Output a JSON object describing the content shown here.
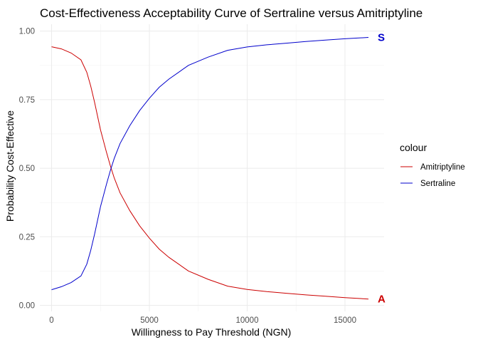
{
  "chart_data": {
    "type": "line",
    "title": "Cost-Effectiveness Acceptability Curve of Sertraline versus Amitriptyline",
    "xlabel": "Willingness to Pay Threshold (NGN)",
    "ylabel": "Probability Cost-Effective",
    "xlim": [
      -600,
      17000
    ],
    "ylim": [
      -0.022,
      1.025
    ],
    "x_ticks": [
      0,
      5000,
      10000,
      15000
    ],
    "x_tick_labels": [
      "0",
      "5000",
      "10000",
      "15000"
    ],
    "y_ticks": [
      0,
      0.25,
      0.5,
      0.75,
      1.0
    ],
    "y_tick_labels": [
      "0.00",
      "0.25",
      "0.50",
      "0.75",
      "1.00"
    ],
    "grid": true,
    "legend": {
      "title": "colour",
      "position": "right",
      "entries": [
        {
          "label": "Amitriptyline",
          "color": "#cc0000"
        },
        {
          "label": "Sertraline",
          "color": "#0000cc"
        }
      ]
    },
    "series": [
      {
        "name": "Amitriptyline",
        "color": "#cc0000",
        "end_label": "A",
        "x": [
          0,
          500,
          1000,
          1500,
          1800,
          2000,
          2200,
          2500,
          2800,
          3000,
          3200,
          3500,
          4000,
          4500,
          5000,
          5500,
          6000,
          7000,
          8000,
          9000,
          10000,
          11000,
          12000,
          13000,
          14000,
          15000,
          16200
        ],
        "y": [
          0.943,
          0.935,
          0.92,
          0.895,
          0.85,
          0.8,
          0.74,
          0.64,
          0.56,
          0.51,
          0.465,
          0.41,
          0.345,
          0.29,
          0.245,
          0.205,
          0.175,
          0.125,
          0.095,
          0.07,
          0.058,
          0.05,
          0.044,
          0.038,
          0.033,
          0.028,
          0.023
        ]
      },
      {
        "name": "Sertraline",
        "color": "#0000cc",
        "end_label": "S",
        "x": [
          0,
          500,
          1000,
          1500,
          1800,
          2000,
          2200,
          2500,
          2800,
          3000,
          3200,
          3500,
          4000,
          4500,
          5000,
          5500,
          6000,
          7000,
          8000,
          9000,
          10000,
          11000,
          12000,
          13000,
          14000,
          15000,
          16200
        ],
        "y": [
          0.057,
          0.068,
          0.083,
          0.107,
          0.15,
          0.2,
          0.26,
          0.36,
          0.44,
          0.49,
          0.535,
          0.59,
          0.655,
          0.71,
          0.755,
          0.795,
          0.825,
          0.875,
          0.905,
          0.93,
          0.942,
          0.95,
          0.956,
          0.962,
          0.967,
          0.972,
          0.977
        ]
      }
    ]
  }
}
